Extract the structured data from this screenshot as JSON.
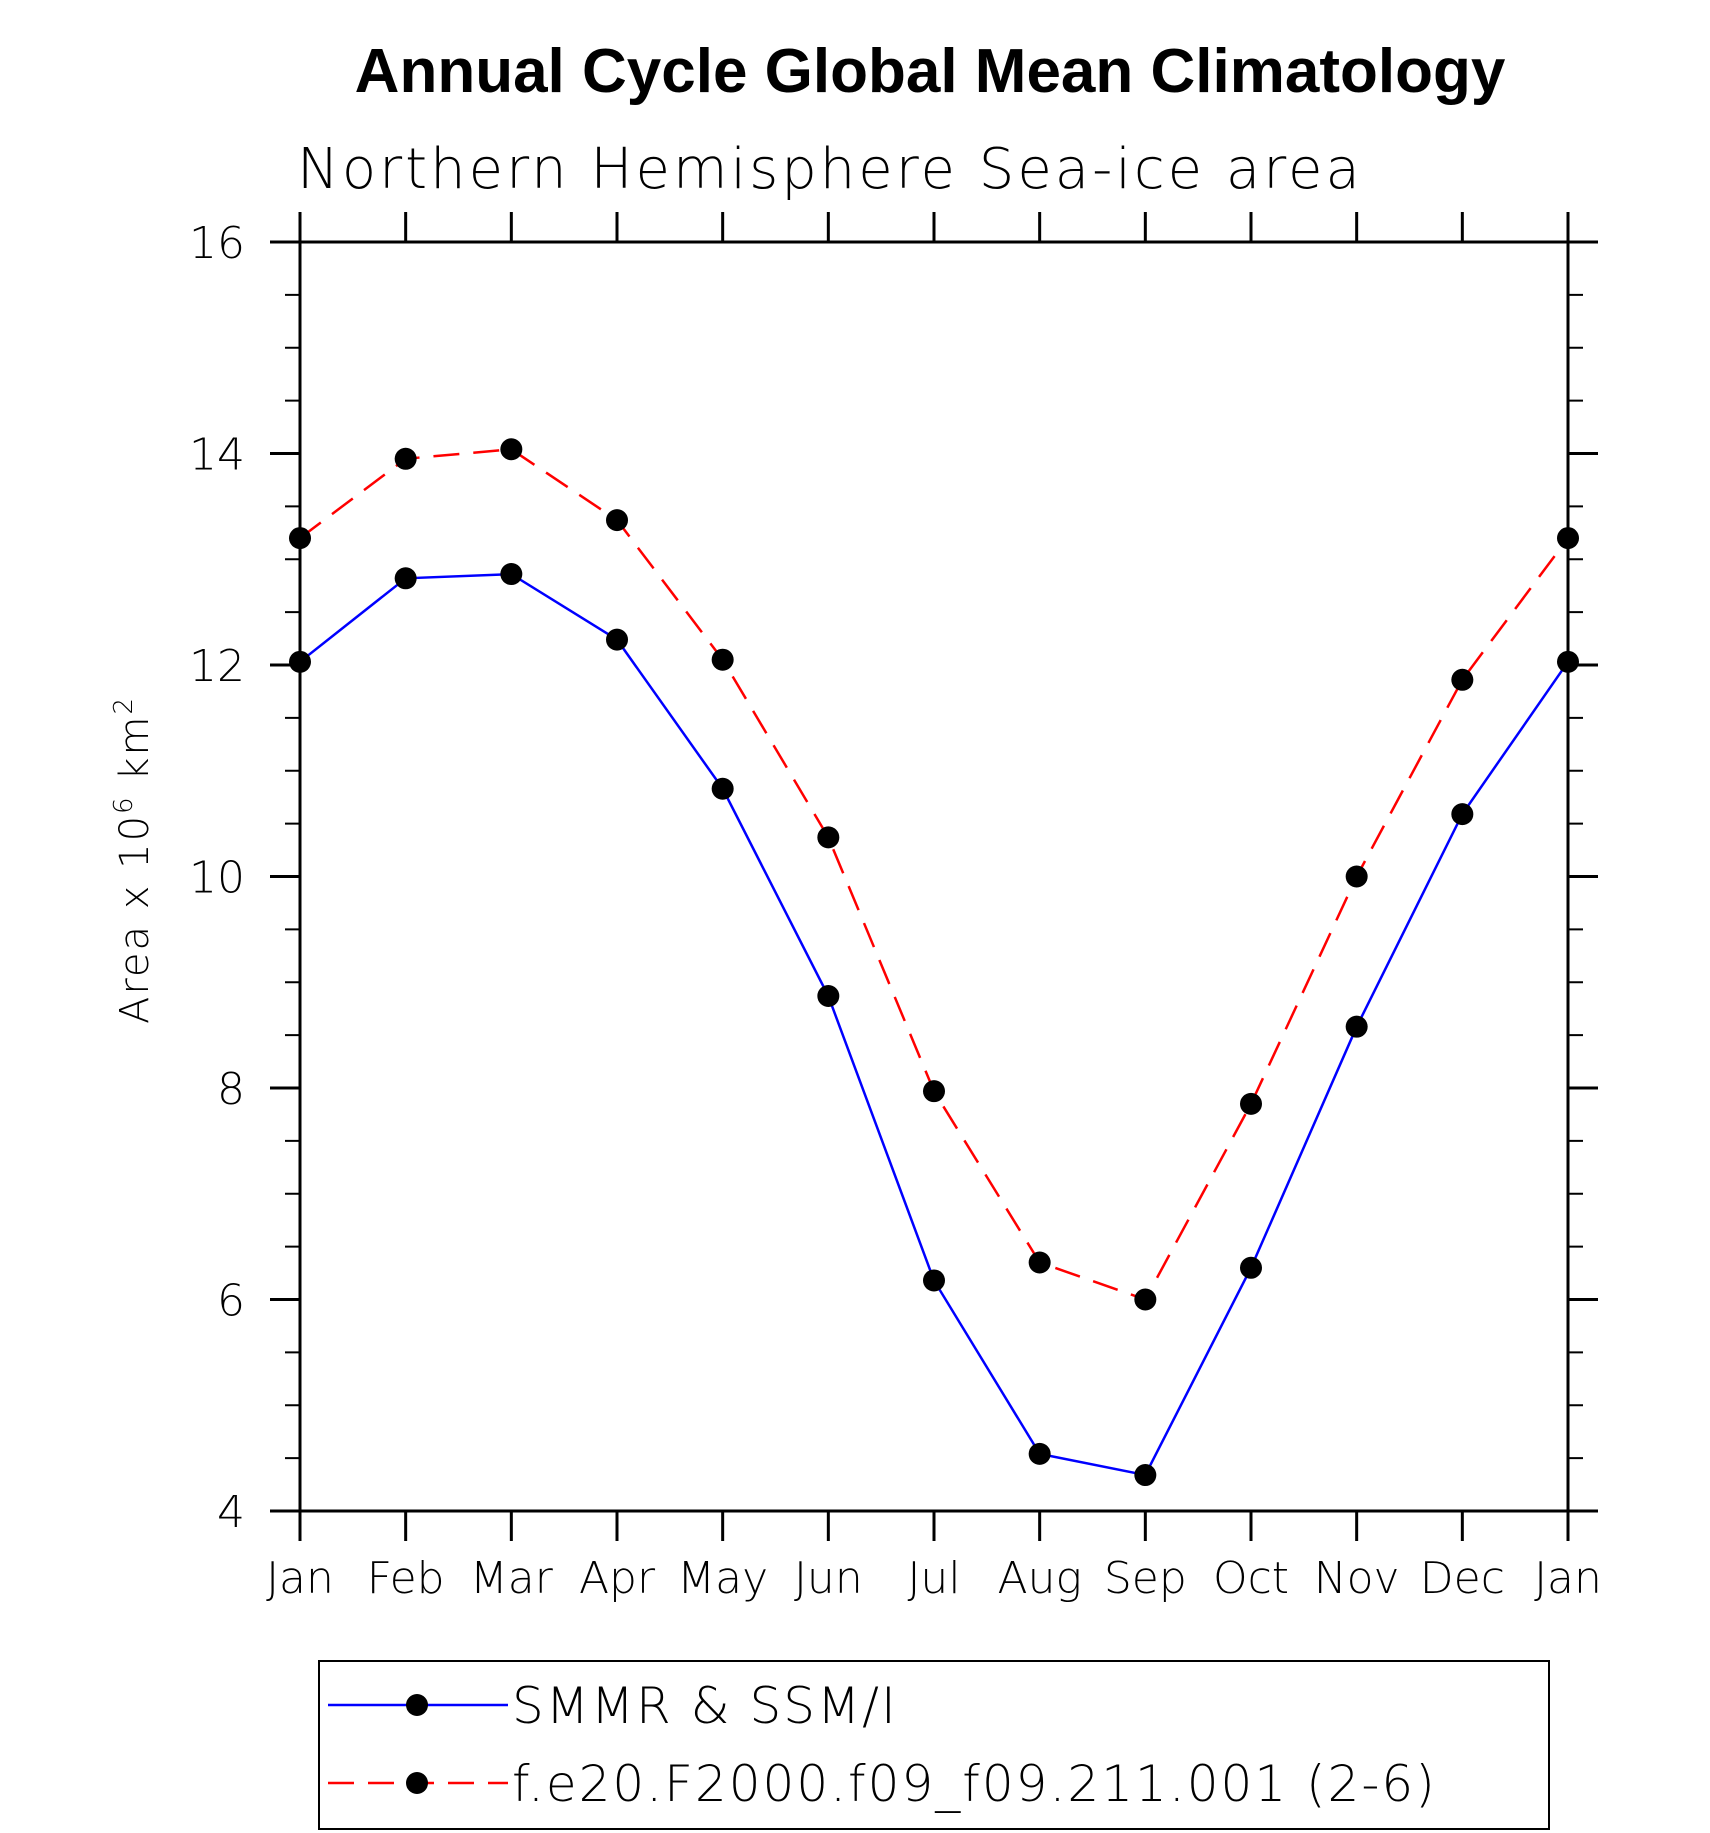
{
  "chart_data": {
    "type": "line",
    "title": "Annual Cycle Global Mean Climatology",
    "subtitle": "Northern Hemisphere Sea-ice area",
    "ylabel": {
      "prefix": "Area x 10",
      "exp1": "6",
      "mid": " km",
      "exp2": "2"
    },
    "xlabel": "",
    "categories": [
      "Jan",
      "Feb",
      "Mar",
      "Apr",
      "May",
      "Jun",
      "Jul",
      "Aug",
      "Sep",
      "Oct",
      "Nov",
      "Dec",
      "Jan"
    ],
    "ylim": [
      4,
      16
    ],
    "yticks": [
      4,
      6,
      8,
      10,
      12,
      14,
      16
    ],
    "yticks_labels": [
      "4",
      "6",
      "8",
      "10",
      "12",
      "14",
      "16"
    ],
    "y_minor_step": 0.5,
    "grid": false,
    "legend_position": "bottom",
    "series": [
      {
        "name": "SMMR & SSM/I",
        "color": "#0000ff",
        "dash": "solid",
        "values": [
          12.03,
          12.82,
          12.86,
          12.24,
          10.83,
          8.87,
          6.18,
          4.54,
          4.34,
          6.3,
          8.58,
          10.59,
          12.03
        ]
      },
      {
        "name": "f.e20.F2000.f09_f09.211.001 (2-6)",
        "color": "#ff0000",
        "dash": "dashed",
        "values": [
          13.2,
          13.95,
          14.04,
          13.37,
          12.05,
          10.37,
          7.97,
          6.35,
          6.0,
          7.85,
          10.0,
          11.86,
          13.2
        ]
      }
    ],
    "marker_color": "#000000"
  }
}
